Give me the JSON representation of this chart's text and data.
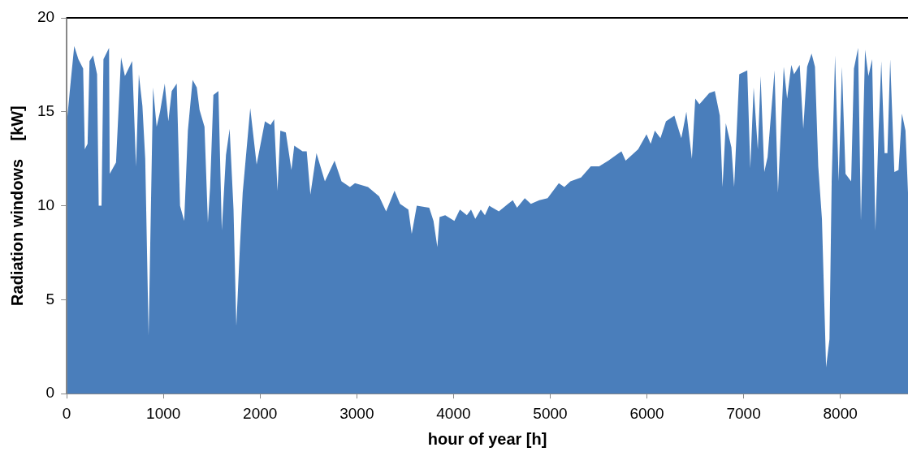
{
  "chart_data": {
    "type": "area",
    "xlabel": "hour of year [h]",
    "ylabel": "Radiation windows    [kW]",
    "xlim": [
      0,
      8700
    ],
    "xticks": [
      0,
      1000,
      2000,
      3000,
      4000,
      5000,
      6000,
      7000,
      8000
    ],
    "ylim": [
      0,
      20
    ],
    "yticks": [
      0,
      5,
      10,
      15,
      20
    ],
    "grid": false,
    "legend": false,
    "series": [
      {
        "color": "#4a7ebb",
        "x": [
          0,
          6,
          43,
          78,
          121,
          170,
          187,
          216,
          236,
          273,
          314,
          331,
          360,
          380,
          438,
          445,
          510,
          562,
          602,
          677,
          717,
          746,
          783,
          812,
          847,
          893,
          930,
          965,
          1014,
          1051,
          1086,
          1138,
          1172,
          1215,
          1253,
          1302,
          1345,
          1374,
          1425,
          1460,
          1483,
          1517,
          1569,
          1604,
          1647,
          1685,
          1725,
          1754,
          1791,
          1820,
          1898,
          1964,
          2050,
          2108,
          2145,
          2180,
          2209,
          2266,
          2324,
          2353,
          2439,
          2482,
          2520,
          2583,
          2670,
          2770,
          2842,
          2929,
          2981,
          3116,
          3231,
          3303,
          3390,
          3447,
          3533,
          3568,
          3620,
          3749,
          3793,
          3833,
          3856,
          3914,
          4009,
          4066,
          4138,
          4181,
          4225,
          4282,
          4325,
          4369,
          4469,
          4564,
          4613,
          4657,
          4737,
          4800,
          4887,
          4973,
          5089,
          5146,
          5209,
          5319,
          5420,
          5506,
          5601,
          5737,
          5780,
          5909,
          5996,
          6039,
          6082,
          6140,
          6197,
          6284,
          6356,
          6408,
          6465,
          6500,
          6543,
          6644,
          6702,
          6754,
          6782,
          6816,
          6874,
          6902,
          6955,
          7038,
          7069,
          7104,
          7147,
          7176,
          7214,
          7248,
          7320,
          7355,
          7415,
          7450,
          7493,
          7522,
          7580,
          7617,
          7657,
          7703,
          7738,
          7772,
          7810,
          7853,
          7888,
          7911,
          7946,
          7983,
          8017,
          8054,
          8112,
          8141,
          8184,
          8213,
          8256,
          8291,
          8329,
          8363,
          8395,
          8424,
          8458,
          8487,
          8516,
          8559,
          8602,
          8637,
          8674,
          8700
        ],
        "values": [
          0,
          14.7,
          16.7,
          18.5,
          17.8,
          17.3,
          13.0,
          13.3,
          17.7,
          18.0,
          17.0,
          10.0,
          10.0,
          17.8,
          18.4,
          11.7,
          12.3,
          17.9,
          16.9,
          17.7,
          12.1,
          17.0,
          15.3,
          12.5,
          3.1,
          16.3,
          14.2,
          15.0,
          16.5,
          14.5,
          16.1,
          16.5,
          10.0,
          9.2,
          14.0,
          16.7,
          16.3,
          15.1,
          14.2,
          9.1,
          11.0,
          15.9,
          16.1,
          8.7,
          12.7,
          14.1,
          9.8,
          3.6,
          7.8,
          10.7,
          15.2,
          12.2,
          14.5,
          14.3,
          14.6,
          10.8,
          14.0,
          13.9,
          11.9,
          13.2,
          12.9,
          12.9,
          10.6,
          12.8,
          11.3,
          12.4,
          11.3,
          11.0,
          11.2,
          11.0,
          10.5,
          9.7,
          10.8,
          10.1,
          9.8,
          8.5,
          10.0,
          9.9,
          9.2,
          7.8,
          9.4,
          9.5,
          9.2,
          9.8,
          9.5,
          9.8,
          9.3,
          9.8,
          9.5,
          10.0,
          9.7,
          10.1,
          10.3,
          9.9,
          10.4,
          10.1,
          10.3,
          10.4,
          11.2,
          11.0,
          11.3,
          11.5,
          12.1,
          12.1,
          12.4,
          12.9,
          12.4,
          13.0,
          13.8,
          13.3,
          14.0,
          13.6,
          14.5,
          14.8,
          13.6,
          15.0,
          12.5,
          15.7,
          15.4,
          16.0,
          16.1,
          14.8,
          11.0,
          14.4,
          13.1,
          11.0,
          17.0,
          17.2,
          12.0,
          16.3,
          13.0,
          16.9,
          11.8,
          12.6,
          17.2,
          10.7,
          17.4,
          15.7,
          17.5,
          17.0,
          17.5,
          14.1,
          17.4,
          18.1,
          17.4,
          12.1,
          9.3,
          1.4,
          2.9,
          11.4,
          18.0,
          11.3,
          17.4,
          11.7,
          11.3,
          17.3,
          18.4,
          9.2,
          18.3,
          16.9,
          17.8,
          8.7,
          13.9,
          17.7,
          12.8,
          12.8,
          17.8,
          11.8,
          11.9,
          14.9,
          14.0,
          10.7
        ]
      }
    ]
  }
}
